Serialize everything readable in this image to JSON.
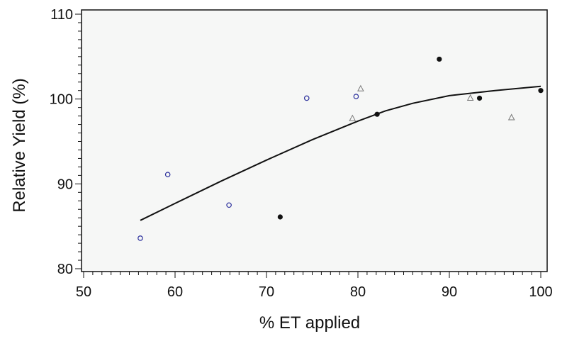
{
  "chart_data": {
    "type": "scatter",
    "title": "",
    "xlabel": "% ET applied",
    "ylabel": "Relative Yield (%)",
    "xlim": [
      50,
      100
    ],
    "ylim": [
      80,
      110
    ],
    "x_ticks": [
      50,
      60,
      70,
      80,
      90,
      100
    ],
    "y_ticks": [
      80,
      90,
      100,
      110
    ],
    "grid": false,
    "legend": "none",
    "colors": {
      "plot_background": "#f6f7f6",
      "axis": "#111111",
      "open_circle": "#2b2f9c",
      "filled_circle": "#111111",
      "triangle": "#777777",
      "curve": "#111111"
    },
    "series": [
      {
        "marker": "open-circle",
        "points": [
          [
            56.2,
            83.6
          ],
          [
            59.2,
            91.1
          ],
          [
            65.9,
            87.5
          ],
          [
            74.4,
            100.1
          ],
          [
            79.8,
            100.3
          ]
        ]
      },
      {
        "marker": "filled-circle",
        "points": [
          [
            71.5,
            86.1
          ],
          [
            82.1,
            98.2
          ],
          [
            88.9,
            104.7
          ],
          [
            93.3,
            100.1
          ],
          [
            100.0,
            101.0
          ]
        ]
      },
      {
        "marker": "open-triangle",
        "points": [
          [
            79.4,
            97.7
          ],
          [
            80.3,
            101.2
          ],
          [
            92.3,
            100.1
          ],
          [
            96.8,
            97.8
          ]
        ]
      },
      {
        "marker": "line",
        "points": [
          [
            56.2,
            85.7
          ],
          [
            60,
            87.7
          ],
          [
            65,
            90.3
          ],
          [
            70,
            92.8
          ],
          [
            75,
            95.2
          ],
          [
            80,
            97.4
          ],
          [
            83,
            98.6
          ],
          [
            86,
            99.5
          ],
          [
            90,
            100.4
          ],
          [
            95,
            101.0
          ],
          [
            100,
            101.5
          ]
        ]
      }
    ]
  }
}
